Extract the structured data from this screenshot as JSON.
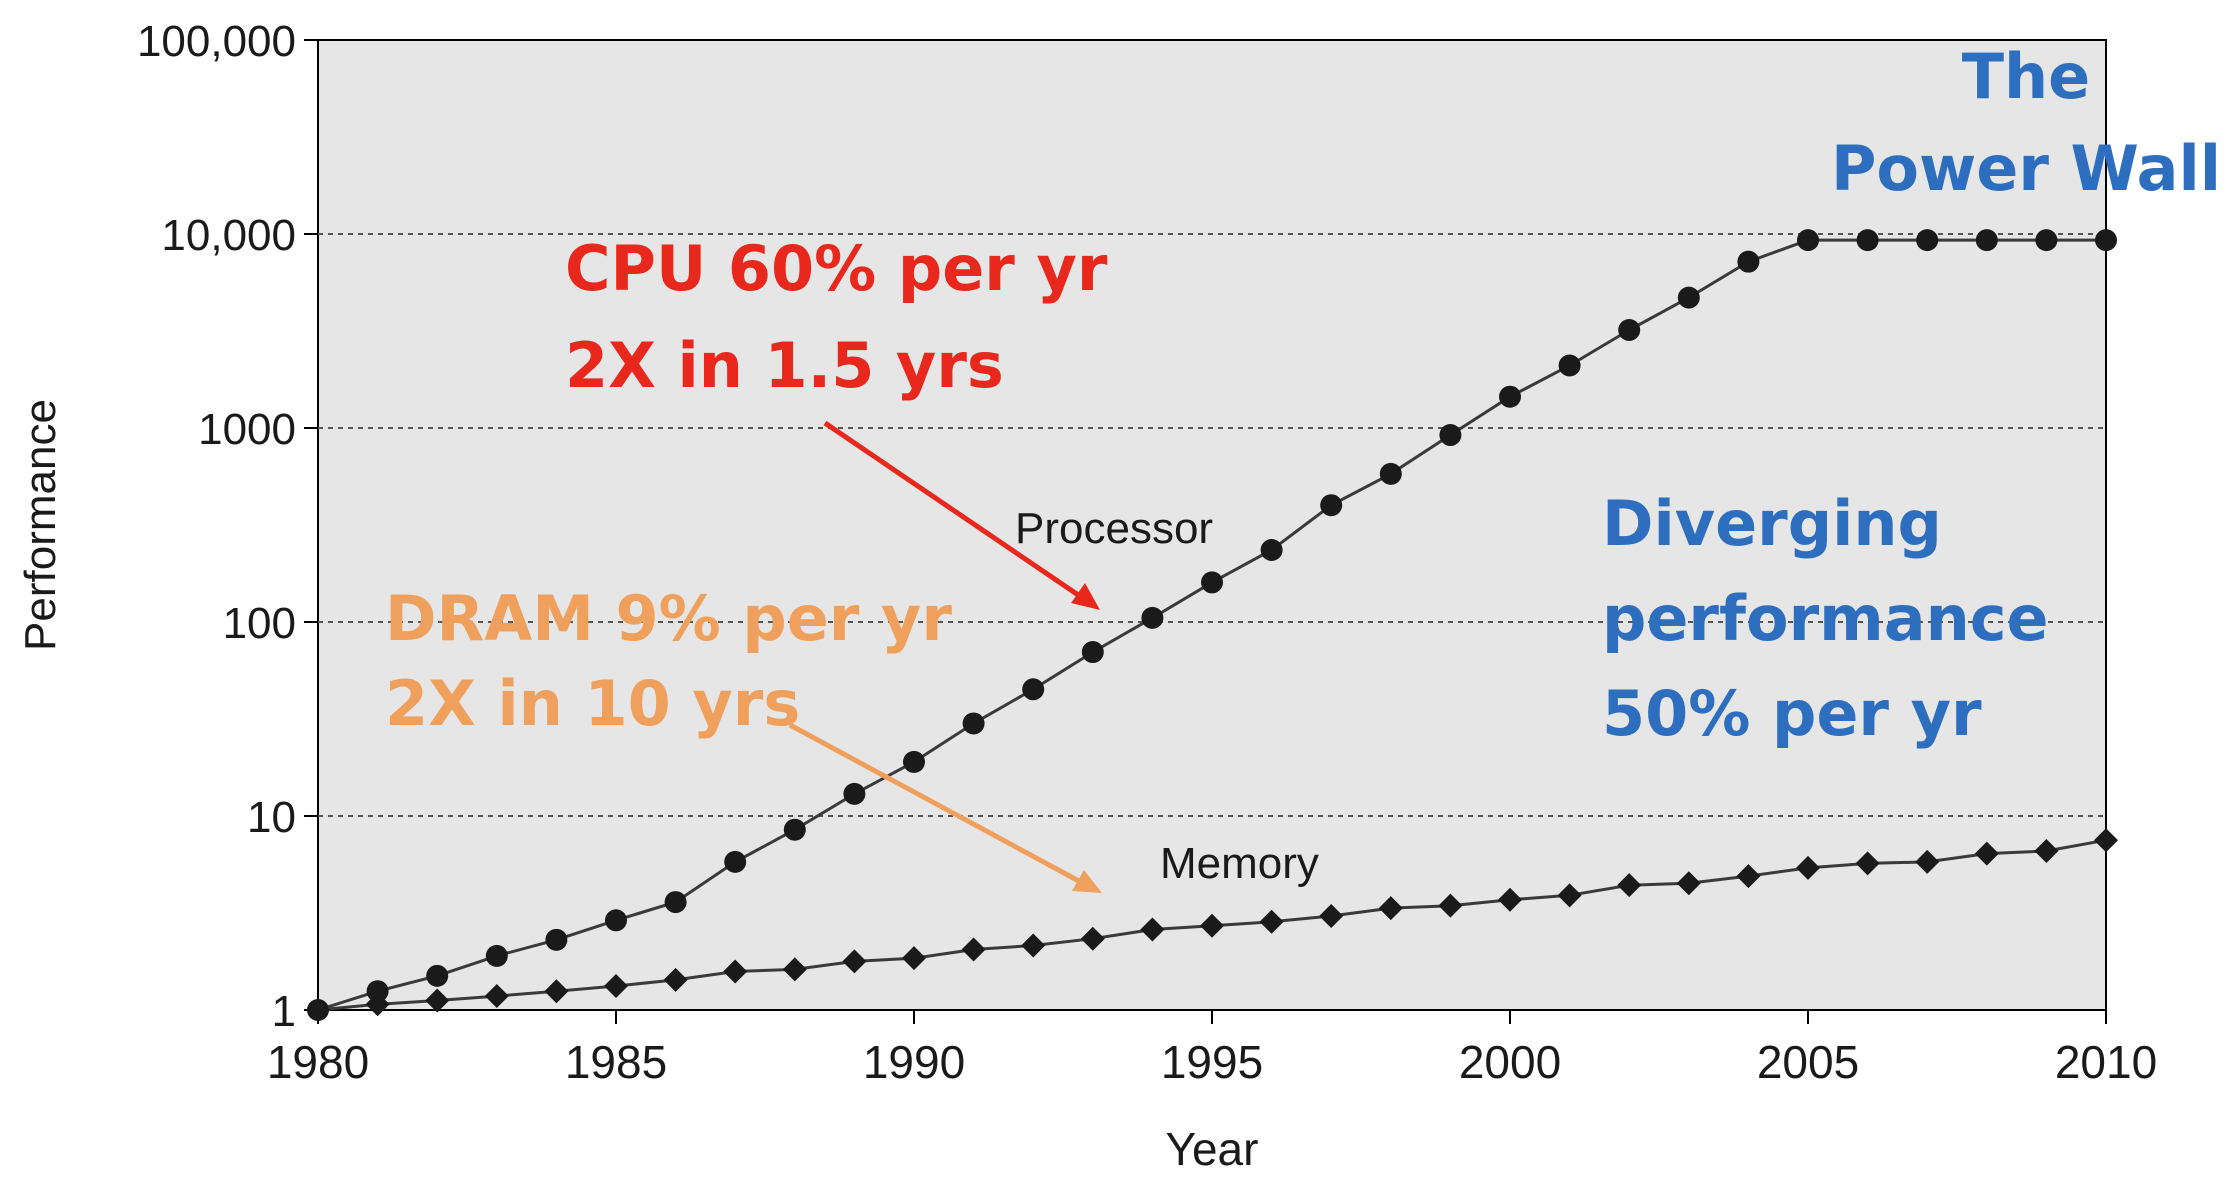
{
  "chart_data": {
    "type": "line",
    "xlabel": "Year",
    "ylabel": "Performance",
    "xlim": [
      1980,
      2010
    ],
    "ylim": [
      1,
      100000
    ],
    "yscale": "log",
    "grid": "horizontal dotted at y ticks",
    "x_ticks": [
      1980,
      1985,
      1990,
      1995,
      2000,
      2005,
      2010
    ],
    "x_tick_labels": [
      "1980",
      "1985",
      "1990",
      "1995",
      "2000",
      "2005",
      "2010"
    ],
    "y_ticks": [
      1,
      10,
      100,
      1000,
      10000,
      100000
    ],
    "y_tick_labels": [
      "1",
      "10",
      "100",
      "1000",
      "10,000",
      "100,000"
    ],
    "x": [
      1980,
      1981,
      1982,
      1983,
      1984,
      1985,
      1986,
      1987,
      1988,
      1989,
      1990,
      1991,
      1992,
      1993,
      1994,
      1995,
      1996,
      1997,
      1998,
      1999,
      2000,
      2001,
      2002,
      2003,
      2004,
      2005,
      2006,
      2007,
      2008,
      2009,
      2010
    ],
    "series": [
      {
        "name": "Processor",
        "marker": "circle",
        "values": [
          1,
          1.25,
          1.5,
          1.9,
          2.3,
          2.9,
          3.6,
          5.8,
          8.5,
          13,
          19,
          30,
          45,
          70,
          105,
          160,
          235,
          400,
          580,
          920,
          1450,
          2100,
          3200,
          4700,
          7200,
          9300,
          9300,
          9300,
          9300,
          9300,
          9300
        ]
      },
      {
        "name": "Memory",
        "marker": "diamond",
        "values": [
          1,
          1.07,
          1.12,
          1.18,
          1.25,
          1.33,
          1.43,
          1.58,
          1.62,
          1.78,
          1.85,
          2.05,
          2.15,
          2.33,
          2.6,
          2.72,
          2.85,
          3.05,
          3.35,
          3.45,
          3.7,
          3.9,
          4.4,
          4.5,
          4.9,
          5.4,
          5.7,
          5.8,
          6.4,
          6.6,
          7.5
        ]
      }
    ],
    "annotations": {
      "cpu_line1": "CPU 60% per yr",
      "cpu_line2": "2X in 1.5 yrs",
      "dram_line1": "DRAM 9% per yr",
      "dram_line2": "2X in 10 yrs",
      "wall_line1": "The",
      "wall_line2": "Power Wall",
      "div_line1": "Diverging",
      "div_line2": "performance",
      "div_line3": "50% per yr"
    },
    "colors": {
      "plot_background": "#e6e6e6",
      "series_line": "#3a3a3a",
      "marker": "#1a1a1a",
      "cpu_annotation": "#e8281d",
      "dram_annotation": "#eea05c",
      "blue_annotation": "#2e6ebf"
    }
  }
}
